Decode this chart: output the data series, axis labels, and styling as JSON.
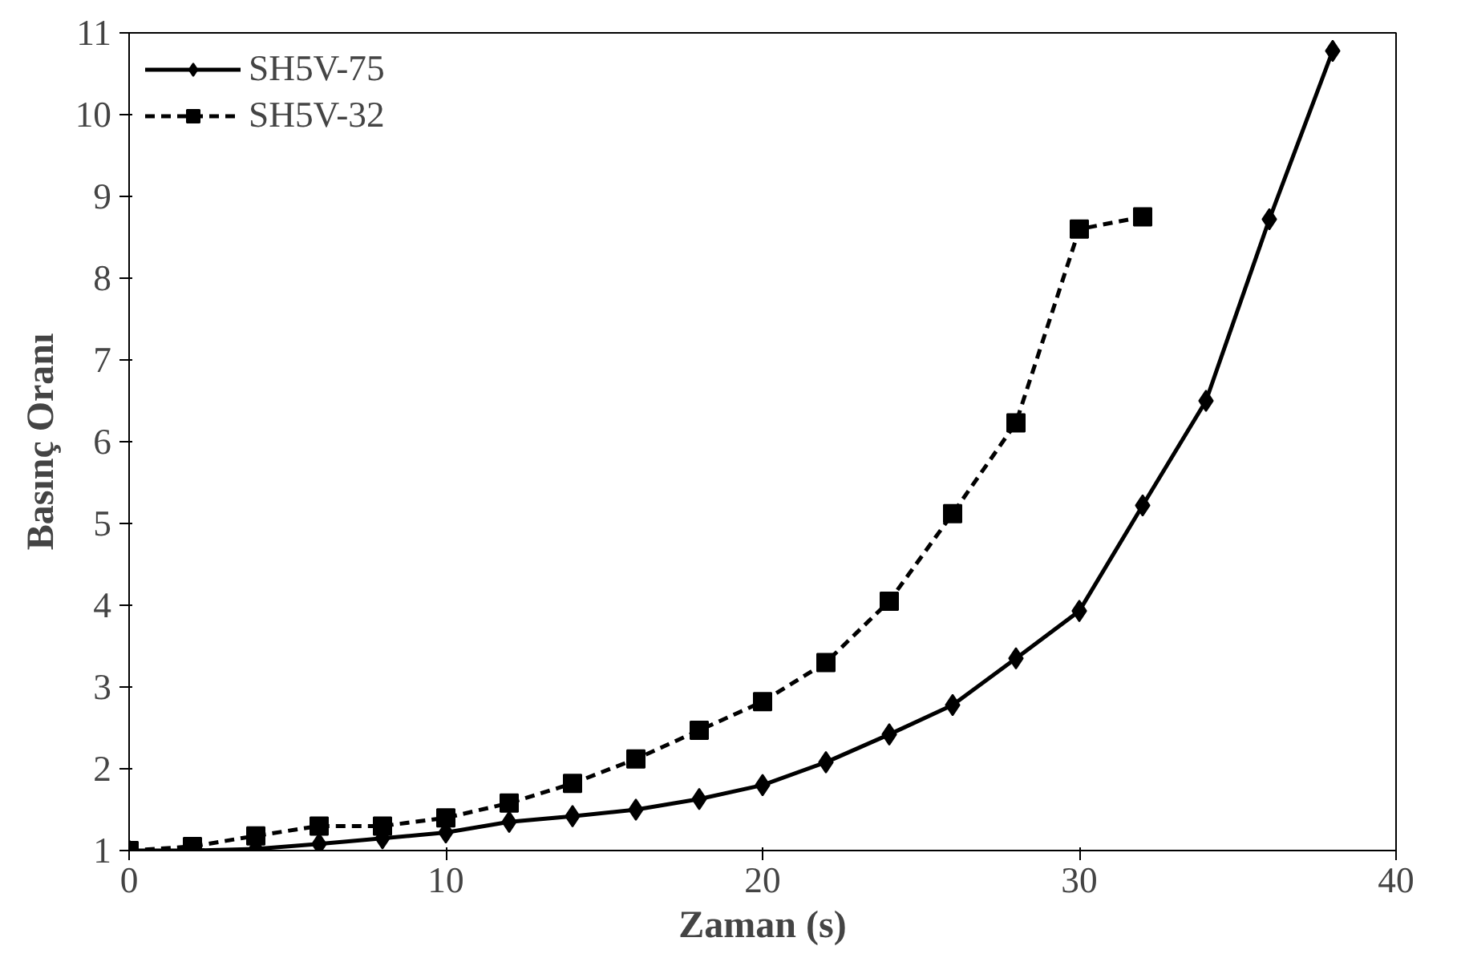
{
  "chart_data": {
    "type": "line",
    "xlabel": "Zaman (s)",
    "ylabel": "Basınç Oranı",
    "xlim": [
      0,
      40
    ],
    "ylim": [
      1,
      11
    ],
    "xticks": [
      0,
      10,
      20,
      30,
      40
    ],
    "yticks": [
      1,
      2,
      3,
      4,
      5,
      6,
      7,
      8,
      9,
      10,
      11
    ],
    "grid": false,
    "legend": "top left",
    "series": [
      {
        "name": "SH5V-75",
        "color": "#000000",
        "marker": "diamond",
        "line_style": "solid",
        "x": [
          0,
          2,
          4,
          6,
          8,
          10,
          12,
          14,
          16,
          18,
          20,
          22,
          24,
          26,
          28,
          30,
          32,
          34,
          36,
          38
        ],
        "values": [
          1.0,
          1.0,
          1.02,
          1.08,
          1.15,
          1.22,
          1.35,
          1.42,
          1.5,
          1.63,
          1.8,
          2.08,
          2.42,
          2.78,
          3.35,
          3.93,
          5.22,
          6.5,
          8.72,
          10.78
        ]
      },
      {
        "name": "SH5V-32",
        "color": "#000000",
        "marker": "square",
        "line_style": "dashed",
        "x": [
          0,
          2,
          4,
          6,
          8,
          10,
          12,
          14,
          16,
          18,
          20,
          22,
          24,
          26,
          28,
          30,
          32
        ],
        "values": [
          1.0,
          1.05,
          1.18,
          1.3,
          1.3,
          1.4,
          1.58,
          1.82,
          2.12,
          2.47,
          2.82,
          3.3,
          4.05,
          5.12,
          6.23,
          8.6,
          8.75
        ]
      }
    ]
  }
}
